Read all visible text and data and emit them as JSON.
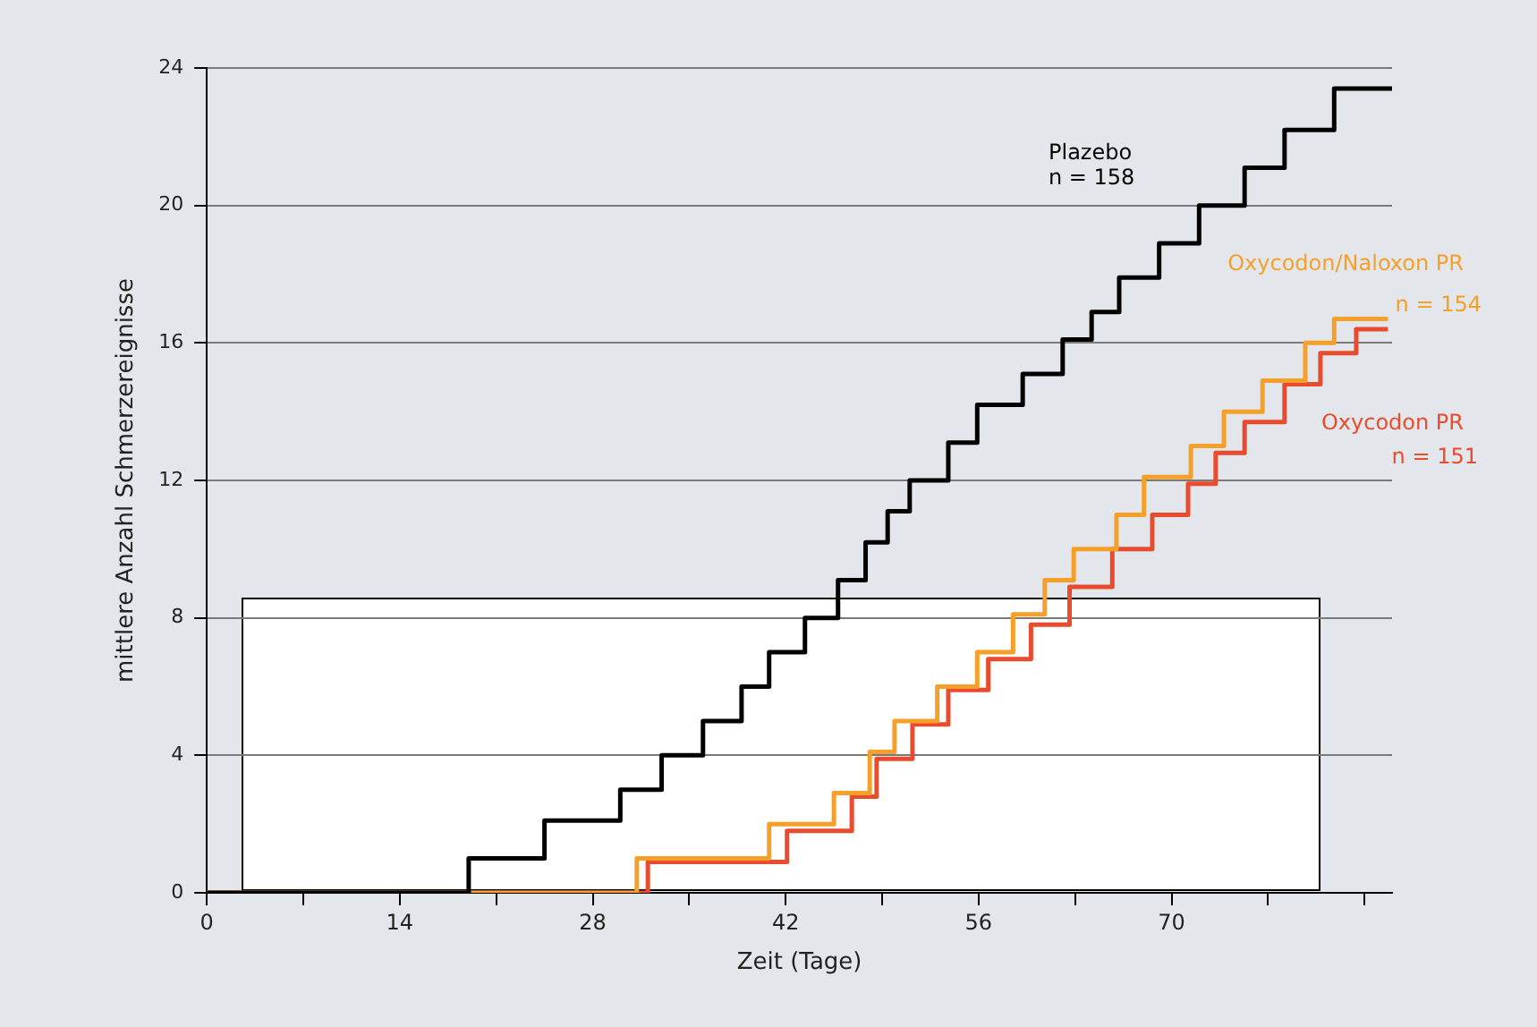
{
  "chart_data": {
    "type": "step",
    "xlabel": "Zeit (Tage)",
    "ylabel": "mittlere Anzahl Schmerzereignisse",
    "xlim": [
      0,
      86
    ],
    "ylim": [
      0,
      24
    ],
    "xticks": [
      0,
      {
        "value": 7,
        "label": null
      },
      14,
      {
        "value": 21,
        "label": null
      },
      28,
      {
        "value": 35,
        "label": null
      },
      42,
      {
        "value": 49,
        "label": null
      },
      56,
      {
        "value": 63,
        "label": null
      },
      70,
      {
        "value": 77,
        "label": null
      },
      {
        "value": 84,
        "label": null
      }
    ],
    "yticks": [
      0,
      4,
      8,
      12,
      16,
      20,
      24
    ],
    "grid": "y",
    "legend": false,
    "marker": "none",
    "line_style": "solid",
    "series": [
      {
        "name": "Plazebo",
        "color": "#000000",
        "x": [
          0,
          19,
          24.5,
          30,
          33,
          36,
          38.8,
          40.8,
          43.4,
          45.8,
          47.8,
          49.4,
          51,
          53.8,
          55.9,
          59.2,
          62.1,
          64.2,
          66.2,
          69.1,
          72,
          75.3,
          78.2,
          81.8,
          86
        ],
        "values": [
          0,
          1,
          2.1,
          3,
          4,
          5,
          6,
          7,
          8,
          9.1,
          10.2,
          11.1,
          12,
          13.1,
          14.2,
          15.1,
          16.1,
          16.9,
          17.9,
          18.9,
          20,
          21.1,
          22.2,
          23.4,
          23.4
        ]
      },
      {
        "name": "Oxycodon/Naloxon PR",
        "color": "#f6a02a",
        "x": [
          0,
          31.2,
          40.8,
          45.5,
          48.1,
          49.9,
          53,
          55.9,
          58.5,
          60.8,
          62.9,
          66,
          68,
          71.4,
          73.8,
          76.6,
          79.7,
          81.8,
          85.7
        ],
        "values": [
          0,
          1,
          2,
          2.9,
          4.1,
          5,
          6,
          7,
          8.1,
          9.1,
          10,
          11,
          12.1,
          13,
          14,
          14.9,
          16,
          16.7,
          16.7
        ]
      },
      {
        "name": "Oxycodon PR",
        "color": "#e94b2e",
        "x": [
          0,
          32,
          42.1,
          46.8,
          48.6,
          51.2,
          53.8,
          56.7,
          59.8,
          62.6,
          65.7,
          68.6,
          71.2,
          73.2,
          75.3,
          78.2,
          80.8,
          83.4,
          85.7
        ],
        "values": [
          0,
          0.9,
          1.8,
          2.8,
          3.9,
          4.9,
          5.9,
          6.8,
          7.8,
          8.9,
          10,
          11,
          11.9,
          12.8,
          13.7,
          14.8,
          15.7,
          16.4,
          16.4
        ]
      }
    ],
    "annotations": [
      "n = 158",
      "n = 154",
      "n = 151"
    ]
  }
}
